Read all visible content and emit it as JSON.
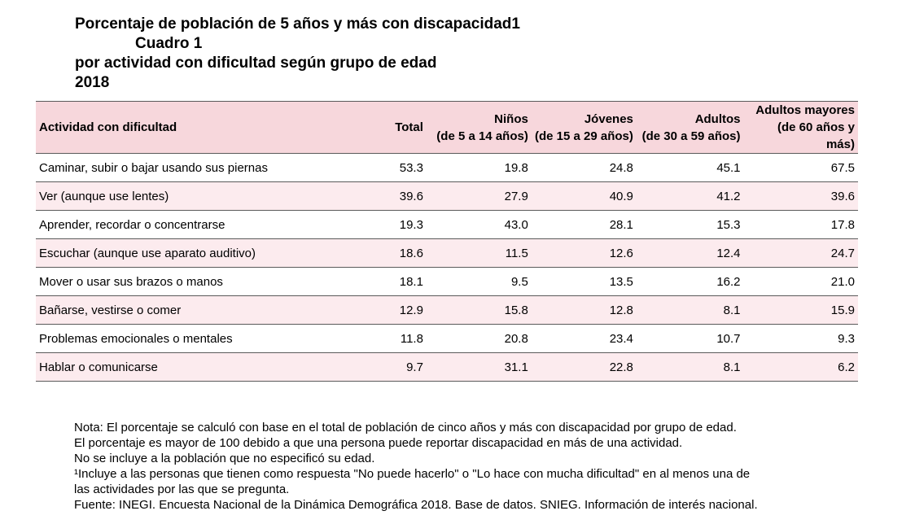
{
  "title": {
    "line1": "Porcentaje de población de 5 años y más con discapacidad1",
    "line2": "Cuadro 1",
    "line3": "por actividad con dificultad según grupo de edad",
    "line4": "2018"
  },
  "table": {
    "headers": {
      "activity": "Actividad con dificultad",
      "total": "Total",
      "ninos": {
        "label": "Niños",
        "range": "(de 5 a 14 años)"
      },
      "jovenes": {
        "label": "Jóvenes",
        "range": "(de 15 a 29 años)"
      },
      "adultos": {
        "label": "Adultos",
        "range": "(de 30 a 59 años)"
      },
      "mayores": {
        "label": "Adultos mayores",
        "range": "(de 60 años y más)"
      }
    },
    "rows": [
      {
        "activity": "Caminar, subir o bajar usando sus piernas",
        "total": "53.3",
        "ninos": "19.8",
        "jovenes": "24.8",
        "adultos": "45.1",
        "mayores": "67.5"
      },
      {
        "activity": "Ver (aunque use  lentes)",
        "total": "39.6",
        "ninos": "27.9",
        "jovenes": "40.9",
        "adultos": "41.2",
        "mayores": "39.6"
      },
      {
        "activity": "Aprender, recordar o concentrarse",
        "total": "19.3",
        "ninos": "43.0",
        "jovenes": "28.1",
        "adultos": "15.3",
        "mayores": "17.8"
      },
      {
        "activity": "Escuchar (aunque use aparato auditivo)",
        "total": "18.6",
        "ninos": "11.5",
        "jovenes": "12.6",
        "adultos": "12.4",
        "mayores": "24.7"
      },
      {
        "activity": "Mover o usar sus brazos o manos",
        "total": "18.1",
        "ninos": "9.5",
        "jovenes": "13.5",
        "adultos": "16.2",
        "mayores": "21.0"
      },
      {
        "activity": "Bañarse, vestirse o comer",
        "total": "12.9",
        "ninos": "15.8",
        "jovenes": "12.8",
        "adultos": "8.1",
        "mayores": "15.9"
      },
      {
        "activity": "Problemas emocionales o mentales",
        "total": "11.8",
        "ninos": "20.8",
        "jovenes": "23.4",
        "adultos": "10.7",
        "mayores": "9.3"
      },
      {
        "activity": "Hablar o comunicarse",
        "total": "9.7",
        "ninos": "31.1",
        "jovenes": "22.8",
        "adultos": "8.1",
        "mayores": "6.2"
      }
    ]
  },
  "notes": [
    "Nota: El porcentaje se calculó con base en el total de población de cinco años y más con discapacidad por grupo de edad.",
    "El porcentaje es mayor de 100 debido a que una persona puede reportar discapacidad en más de una actividad.",
    "No se incluye a la población que no especificó su edad.",
    "¹Incluye a las personas que tienen como respuesta \"No puede hacerlo\" o \"Lo hace con mucha dificultad\" en al menos una de",
    "las actividades por las que se pregunta.",
    "Fuente: INEGI. Encuesta Nacional de la Dinámica Demográfica 2018. Base de datos. SNIEG. Información de interés nacional."
  ],
  "colors": {
    "header_bg": "#f7d7dc",
    "row_alt_bg": "#fcebee",
    "rule": "#5a5a5a"
  }
}
